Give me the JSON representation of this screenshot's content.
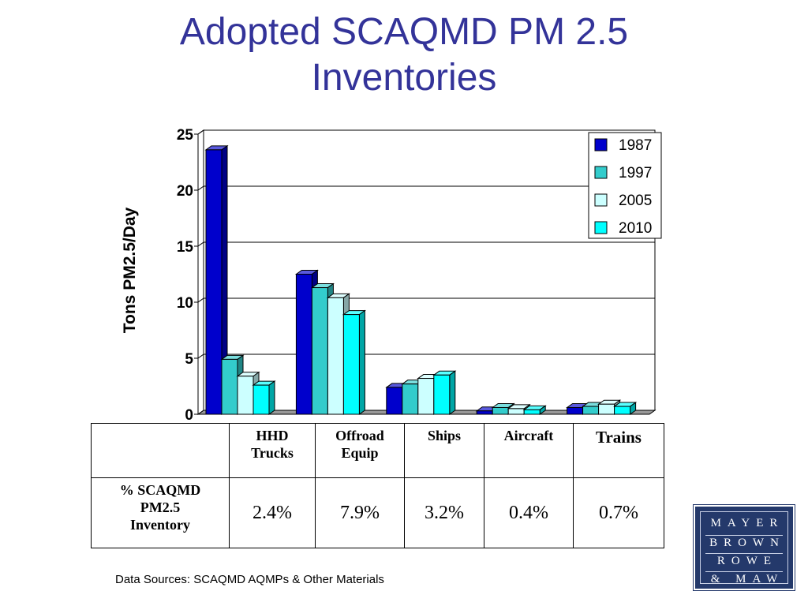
{
  "title": {
    "line1": "Adopted SCAQMD PM 2.5",
    "line2": "Inventories"
  },
  "chart_data": {
    "type": "bar",
    "ylabel": "Tons PM2.5/Day",
    "xlabel": "",
    "ylim": [
      0,
      25
    ],
    "yticks": [
      "0",
      "5",
      "10",
      "15",
      "20",
      "25"
    ],
    "categories": [
      "HHD Trucks",
      "Offroad Equip",
      "Ships",
      "Aircraft",
      "Trains"
    ],
    "series": [
      {
        "name": "1987",
        "color": "#0000cc",
        "values": [
          23.6,
          12.5,
          2.4,
          0.3,
          0.6
        ]
      },
      {
        "name": "1997",
        "color": "#33cccc",
        "values": [
          4.9,
          11.3,
          2.7,
          0.6,
          0.7
        ]
      },
      {
        "name": "2005",
        "color": "#ccffff",
        "values": [
          3.4,
          10.4,
          3.2,
          0.5,
          0.9
        ]
      },
      {
        "name": "2010",
        "color": "#00ffff",
        "values": [
          2.6,
          8.9,
          3.5,
          0.4,
          0.7
        ]
      }
    ],
    "legend_position": "top-right",
    "grid": true
  },
  "table": {
    "headers": [
      "HHD Trucks",
      "Offroad Equip",
      "Ships",
      "Aircraft",
      "Trains"
    ],
    "header_lines": [
      [
        "HHD",
        "Trucks"
      ],
      [
        "Offroad",
        "Equip"
      ],
      [
        "Ships"
      ],
      [
        "Aircraft"
      ],
      [
        "Trains"
      ]
    ],
    "row_label_lines": [
      "% SCAQMD",
      "PM2.5",
      "Inventory"
    ],
    "values": [
      "2.4%",
      "7.9%",
      "3.2%",
      "0.4%",
      "0.7%"
    ]
  },
  "source": "Data Sources: SCAQMD AQMPs & Other Materials",
  "logo": {
    "lines": [
      "MAYER",
      "BROWN",
      "ROWE",
      "& MAW"
    ]
  }
}
